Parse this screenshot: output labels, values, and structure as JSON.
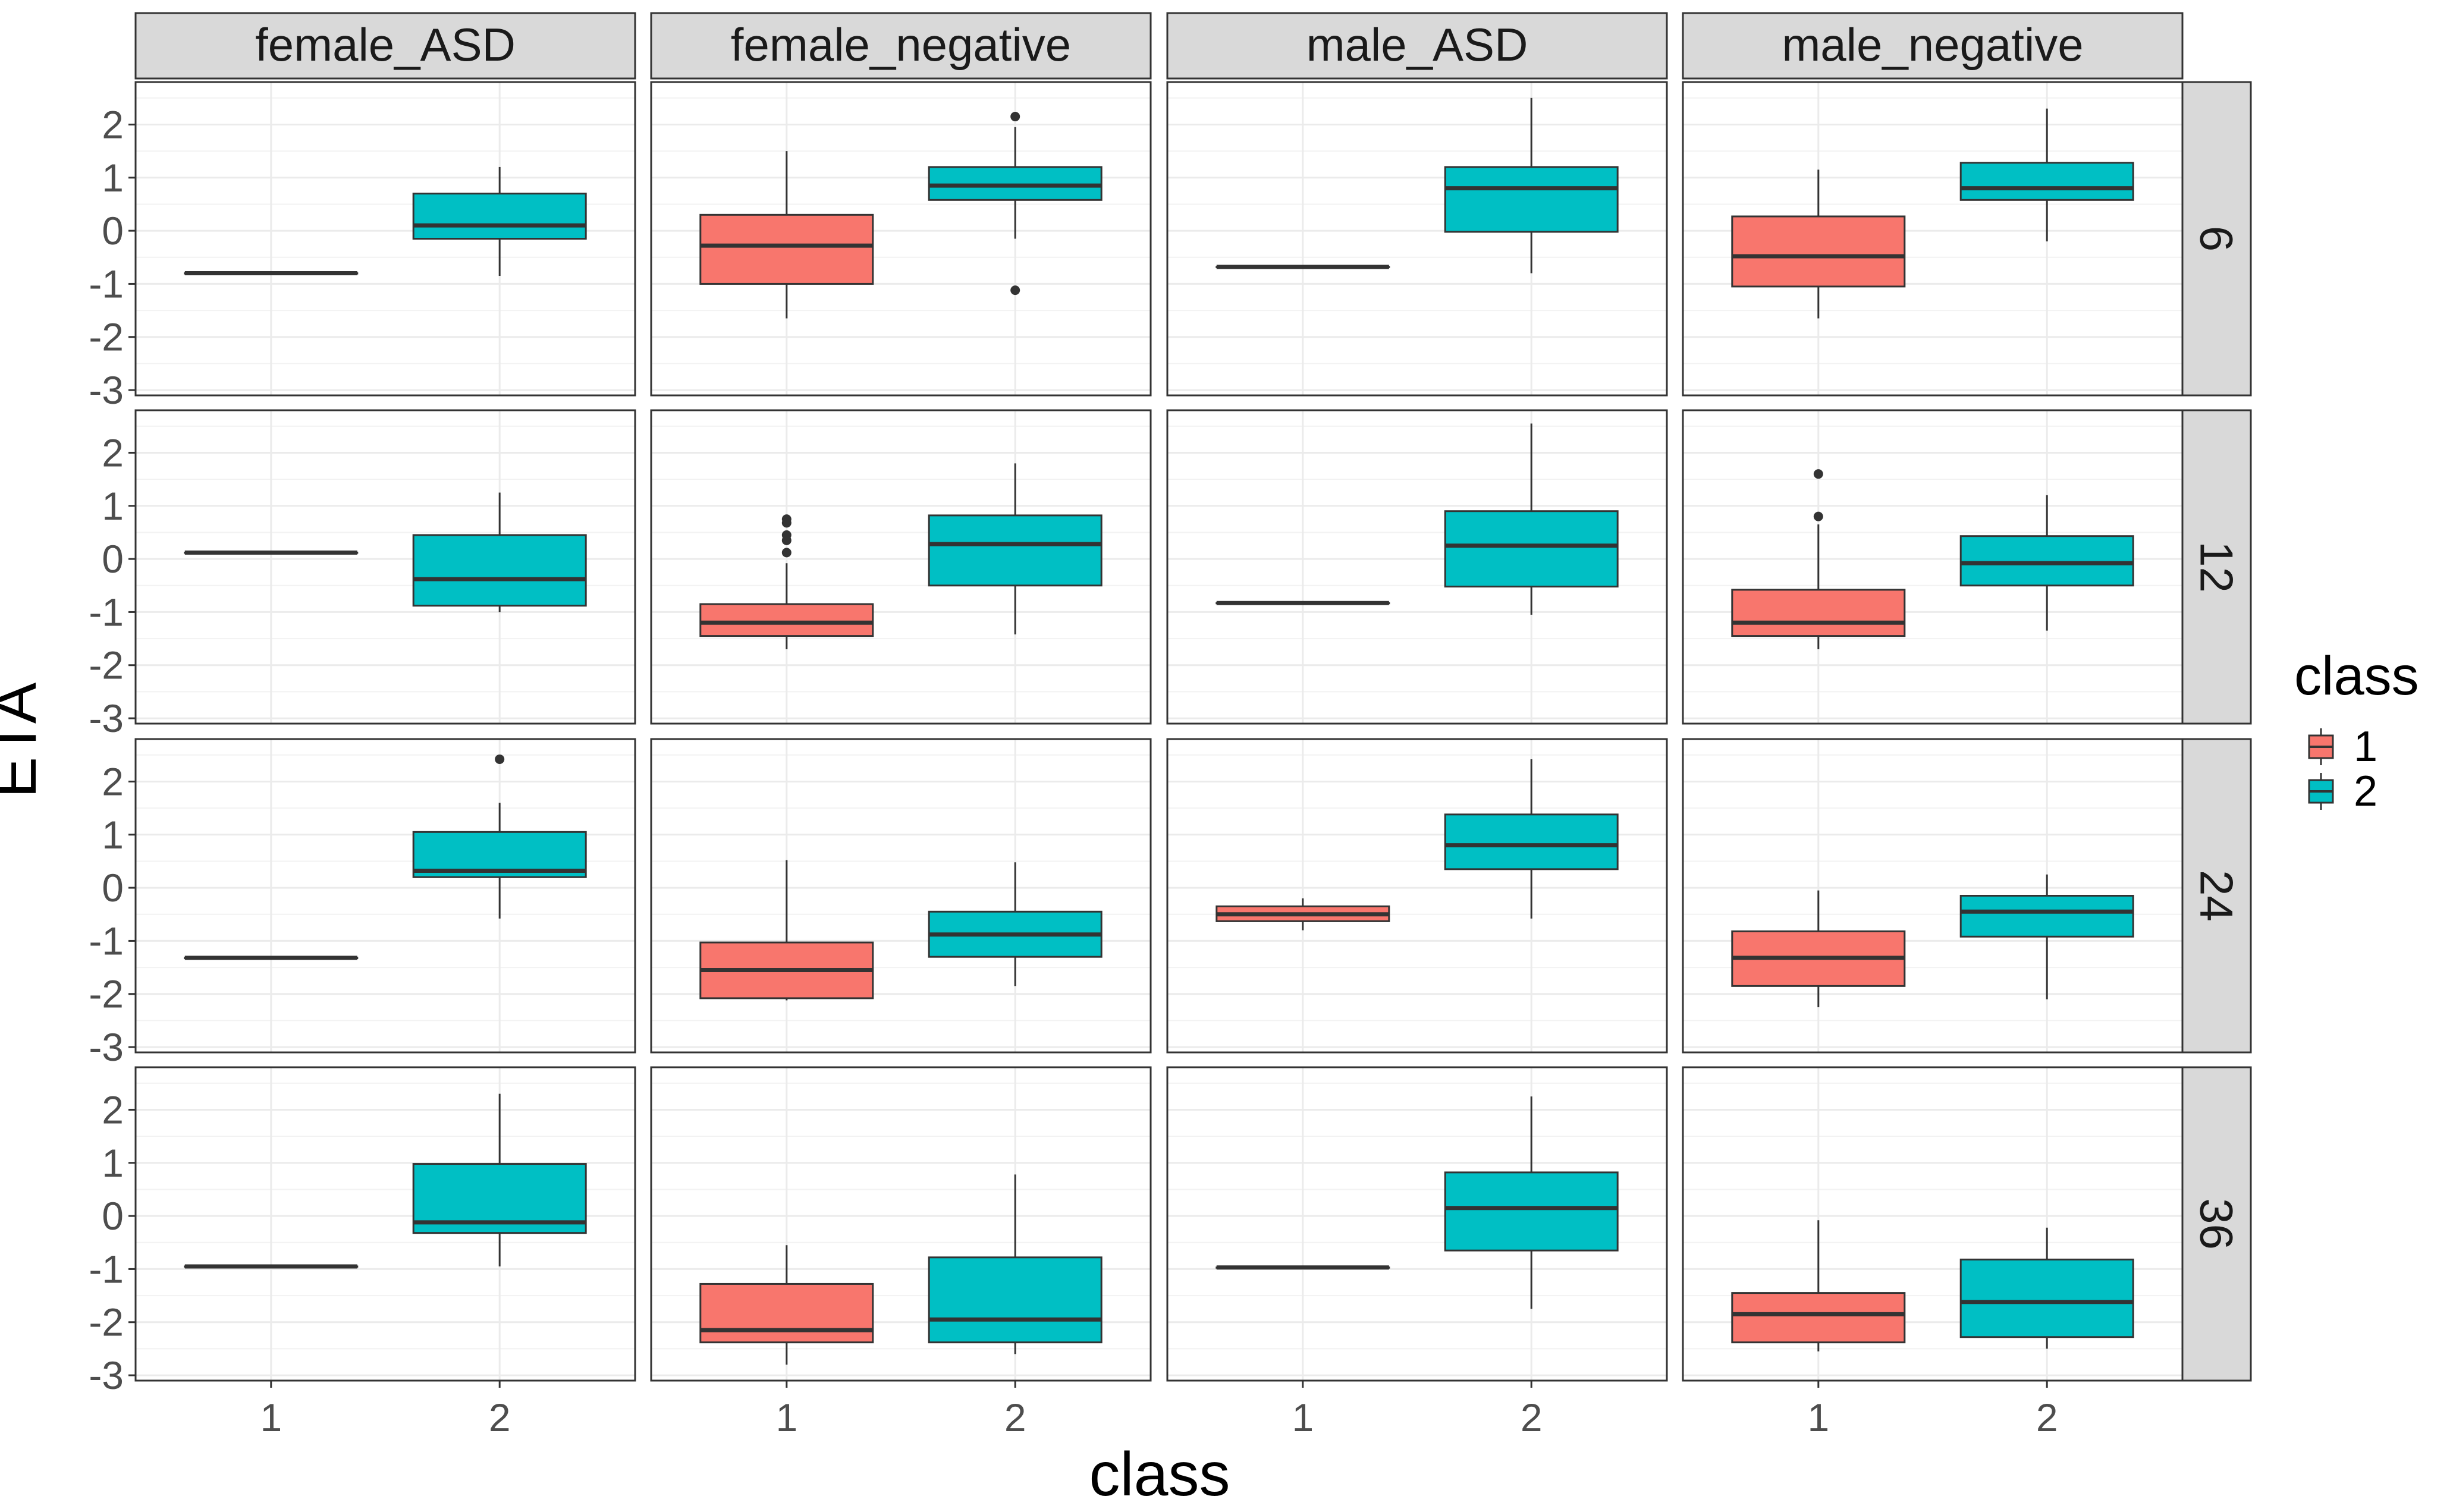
{
  "chart_data": {
    "type": "boxplot",
    "title": "",
    "xlabel": "class",
    "ylabel": "ETA",
    "ylim": [
      -3.1,
      2.8
    ],
    "yticks": [
      -3,
      -2,
      -1,
      0,
      1,
      2
    ],
    "categories": [
      "1",
      "2"
    ],
    "col_facets": [
      "female_ASD",
      "female_negative",
      "male_ASD",
      "male_negative"
    ],
    "row_facets": [
      "6",
      "12",
      "24",
      "36"
    ],
    "grid": true,
    "legend": {
      "title": "class",
      "position": "right",
      "entries": [
        {
          "label": "1",
          "color": "#F8766D"
        },
        {
          "label": "2",
          "color": "#00BFC4"
        }
      ]
    },
    "panels": [
      {
        "row": "6",
        "col": "female_ASD",
        "boxes": [
          {
            "class": "1",
            "min": -0.8,
            "q1": -0.8,
            "median": -0.8,
            "q3": -0.8,
            "max": -0.8,
            "outliers": []
          },
          {
            "class": "2",
            "min": -0.85,
            "q1": -0.15,
            "median": 0.1,
            "q3": 0.7,
            "max": 1.2,
            "outliers": []
          }
        ]
      },
      {
        "row": "6",
        "col": "female_negative",
        "boxes": [
          {
            "class": "1",
            "min": -1.65,
            "q1": -1.0,
            "median": -0.28,
            "q3": 0.3,
            "max": 1.5,
            "outliers": []
          },
          {
            "class": "2",
            "min": -0.15,
            "q1": 0.58,
            "median": 0.85,
            "q3": 1.2,
            "max": 1.95,
            "outliers": [
              2.15,
              -1.12
            ]
          }
        ]
      },
      {
        "row": "6",
        "col": "male_ASD",
        "boxes": [
          {
            "class": "1",
            "min": -0.68,
            "q1": -0.68,
            "median": -0.68,
            "q3": -0.68,
            "max": -0.68,
            "outliers": []
          },
          {
            "class": "2",
            "min": -0.8,
            "q1": -0.02,
            "median": 0.8,
            "q3": 1.2,
            "max": 2.5,
            "outliers": []
          }
        ]
      },
      {
        "row": "6",
        "col": "male_negative",
        "boxes": [
          {
            "class": "1",
            "min": -1.65,
            "q1": -1.05,
            "median": -0.48,
            "q3": 0.27,
            "max": 1.15,
            "outliers": []
          },
          {
            "class": "2",
            "min": -0.2,
            "q1": 0.58,
            "median": 0.8,
            "q3": 1.28,
            "max": 2.3,
            "outliers": []
          }
        ]
      },
      {
        "row": "12",
        "col": "female_ASD",
        "boxes": [
          {
            "class": "1",
            "min": 0.12,
            "q1": 0.12,
            "median": 0.12,
            "q3": 0.12,
            "max": 0.12,
            "outliers": []
          },
          {
            "class": "2",
            "min": -1.0,
            "q1": -0.88,
            "median": -0.38,
            "q3": 0.45,
            "max": 1.25,
            "outliers": []
          }
        ]
      },
      {
        "row": "12",
        "col": "female_negative",
        "boxes": [
          {
            "class": "1",
            "min": -1.7,
            "q1": -1.45,
            "median": -1.2,
            "q3": -0.85,
            "max": -0.08,
            "outliers": [
              0.75,
              0.68,
              0.45,
              0.35,
              0.12
            ]
          },
          {
            "class": "2",
            "min": -1.42,
            "q1": -0.5,
            "median": 0.28,
            "q3": 0.82,
            "max": 1.8,
            "outliers": []
          }
        ]
      },
      {
        "row": "12",
        "col": "male_ASD",
        "boxes": [
          {
            "class": "1",
            "min": -0.83,
            "q1": -0.83,
            "median": -0.83,
            "q3": -0.83,
            "max": -0.83,
            "outliers": []
          },
          {
            "class": "2",
            "min": -1.05,
            "q1": -0.52,
            "median": 0.25,
            "q3": 0.9,
            "max": 2.55,
            "outliers": []
          }
        ]
      },
      {
        "row": "12",
        "col": "male_negative",
        "boxes": [
          {
            "class": "1",
            "min": -1.7,
            "q1": -1.45,
            "median": -1.2,
            "q3": -0.58,
            "max": 0.65,
            "outliers": [
              1.6,
              0.8
            ]
          },
          {
            "class": "2",
            "min": -1.35,
            "q1": -0.5,
            "median": -0.08,
            "q3": 0.43,
            "max": 1.2,
            "outliers": []
          }
        ]
      },
      {
        "row": "24",
        "col": "female_ASD",
        "boxes": [
          {
            "class": "1",
            "min": -1.32,
            "q1": -1.32,
            "median": -1.32,
            "q3": -1.32,
            "max": -1.32,
            "outliers": []
          },
          {
            "class": "2",
            "min": -0.58,
            "q1": 0.2,
            "median": 0.32,
            "q3": 1.05,
            "max": 1.6,
            "outliers": [
              2.42
            ]
          }
        ]
      },
      {
        "row": "24",
        "col": "female_negative",
        "boxes": [
          {
            "class": "1",
            "min": -2.12,
            "q1": -2.08,
            "median": -1.55,
            "q3": -1.03,
            "max": 0.52,
            "outliers": []
          },
          {
            "class": "2",
            "min": -1.85,
            "q1": -1.3,
            "median": -0.88,
            "q3": -0.45,
            "max": 0.48,
            "outliers": []
          }
        ]
      },
      {
        "row": "24",
        "col": "male_ASD",
        "boxes": [
          {
            "class": "1",
            "min": -0.8,
            "q1": -0.63,
            "median": -0.5,
            "q3": -0.35,
            "max": -0.2,
            "outliers": []
          },
          {
            "class": "2",
            "min": -0.58,
            "q1": 0.35,
            "median": 0.8,
            "q3": 1.38,
            "max": 2.42,
            "outliers": []
          }
        ]
      },
      {
        "row": "24",
        "col": "male_negative",
        "boxes": [
          {
            "class": "1",
            "min": -2.25,
            "q1": -1.85,
            "median": -1.32,
            "q3": -0.82,
            "max": -0.05,
            "outliers": []
          },
          {
            "class": "2",
            "min": -2.1,
            "q1": -0.92,
            "median": -0.45,
            "q3": -0.15,
            "max": 0.25,
            "outliers": []
          }
        ]
      },
      {
        "row": "36",
        "col": "female_ASD",
        "boxes": [
          {
            "class": "1",
            "min": -0.95,
            "q1": -0.95,
            "median": -0.95,
            "q3": -0.95,
            "max": -0.95,
            "outliers": []
          },
          {
            "class": "2",
            "min": -0.95,
            "q1": -0.32,
            "median": -0.12,
            "q3": 0.98,
            "max": 2.3,
            "outliers": []
          }
        ]
      },
      {
        "row": "36",
        "col": "female_negative",
        "boxes": [
          {
            "class": "1",
            "min": -2.8,
            "q1": -2.38,
            "median": -2.15,
            "q3": -1.28,
            "max": -0.55,
            "outliers": []
          },
          {
            "class": "2",
            "min": -2.6,
            "q1": -2.38,
            "median": -1.95,
            "q3": -0.78,
            "max": 0.78,
            "outliers": []
          }
        ]
      },
      {
        "row": "36",
        "col": "male_ASD",
        "boxes": [
          {
            "class": "1",
            "min": -0.97,
            "q1": -0.97,
            "median": -0.97,
            "q3": -0.97,
            "max": -0.97,
            "outliers": []
          },
          {
            "class": "2",
            "min": -1.75,
            "q1": -0.65,
            "median": 0.15,
            "q3": 0.82,
            "max": 2.25,
            "outliers": []
          }
        ]
      },
      {
        "row": "36",
        "col": "male_negative",
        "boxes": [
          {
            "class": "1",
            "min": -2.55,
            "q1": -2.38,
            "median": -1.85,
            "q3": -1.45,
            "max": -0.08,
            "outliers": []
          },
          {
            "class": "2",
            "min": -2.5,
            "q1": -2.28,
            "median": -1.62,
            "q3": -0.82,
            "max": -0.22,
            "outliers": []
          }
        ]
      }
    ]
  }
}
